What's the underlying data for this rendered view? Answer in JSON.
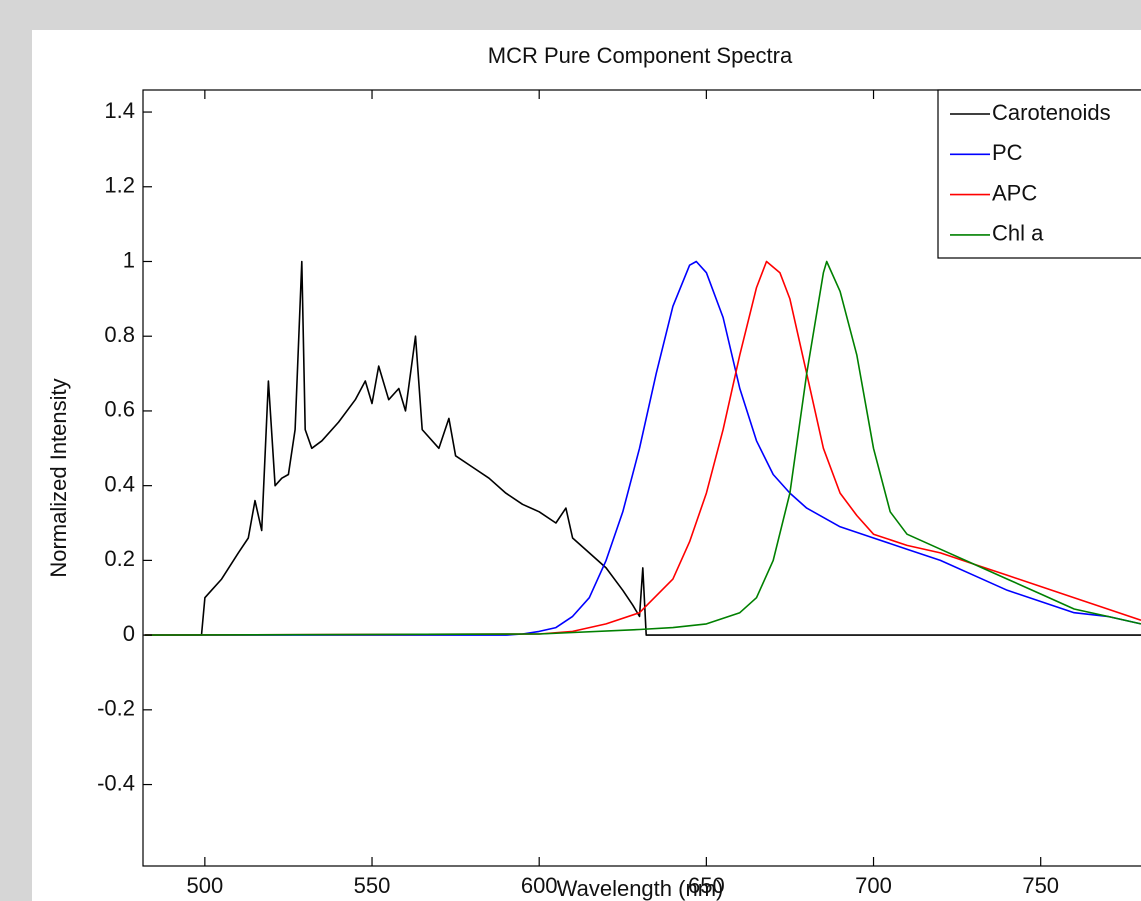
{
  "chart_data": {
    "type": "line",
    "title": "MCR Pure Component Spectra",
    "x_label": "Wavelength (nm)",
    "y_label": "Normalized Intensity",
    "xlim": [
      481.5,
      780
    ],
    "ylim": [
      -0.618,
      1.459
    ],
    "xticks": [
      500,
      550,
      600,
      650,
      700,
      750
    ],
    "yticks": [
      1.4,
      1.2,
      1,
      0.8,
      0.6,
      0.4,
      0.2,
      0,
      -0.2,
      -0.4
    ],
    "legend": "upper right",
    "series": [
      {
        "name": "Carotenoids",
        "color": "#000000",
        "x": [
          482,
          499,
          500,
          502,
          505,
          510,
          513,
          515,
          517,
          519,
          521,
          523,
          525,
          527,
          529,
          530,
          532,
          535,
          540,
          545,
          548,
          550,
          552,
          555,
          558,
          560,
          563,
          565,
          570,
          573,
          575,
          580,
          585,
          590,
          595,
          600,
          605,
          608,
          610,
          615,
          620,
          625,
          628,
          630,
          631,
          632,
          780
        ],
        "values": [
          0,
          0,
          0.1,
          0.12,
          0.15,
          0.22,
          0.26,
          0.36,
          0.28,
          0.68,
          0.4,
          0.42,
          0.43,
          0.55,
          1.0,
          0.55,
          0.5,
          0.52,
          0.57,
          0.63,
          0.68,
          0.62,
          0.72,
          0.63,
          0.66,
          0.6,
          0.8,
          0.55,
          0.5,
          0.58,
          0.48,
          0.45,
          0.42,
          0.38,
          0.35,
          0.33,
          0.3,
          0.34,
          0.26,
          0.22,
          0.18,
          0.12,
          0.08,
          0.05,
          0.18,
          0,
          0
        ]
      },
      {
        "name": "PC",
        "color": "#0000ff",
        "x": [
          482,
          590,
          595,
          600,
          605,
          610,
          615,
          620,
          625,
          630,
          635,
          640,
          645,
          647,
          650,
          655,
          660,
          665,
          670,
          675,
          680,
          690,
          700,
          710,
          720,
          730,
          740,
          750,
          760,
          770,
          780
        ],
        "values": [
          0,
          0,
          0.003,
          0.01,
          0.02,
          0.05,
          0.1,
          0.2,
          0.33,
          0.5,
          0.7,
          0.88,
          0.99,
          1.0,
          0.97,
          0.85,
          0.66,
          0.52,
          0.43,
          0.38,
          0.34,
          0.29,
          0.26,
          0.23,
          0.2,
          0.16,
          0.12,
          0.09,
          0.06,
          0.05,
          0.03
        ]
      },
      {
        "name": "APC",
        "color": "#ff0000",
        "x": [
          482,
          600,
          610,
          620,
          630,
          640,
          645,
          650,
          655,
          660,
          665,
          668,
          672,
          675,
          680,
          685,
          690,
          695,
          700,
          710,
          720,
          730,
          740,
          750,
          760,
          770,
          780
        ],
        "values": [
          0,
          0.003,
          0.01,
          0.03,
          0.06,
          0.15,
          0.25,
          0.38,
          0.55,
          0.75,
          0.93,
          1.0,
          0.97,
          0.9,
          0.7,
          0.5,
          0.38,
          0.32,
          0.27,
          0.24,
          0.22,
          0.19,
          0.16,
          0.13,
          0.1,
          0.07,
          0.04
        ]
      },
      {
        "name": "Chl a",
        "color": "#008000",
        "x": [
          482,
          600,
          630,
          640,
          650,
          660,
          665,
          670,
          675,
          680,
          685,
          686,
          690,
          695,
          700,
          705,
          710,
          720,
          730,
          740,
          750,
          760,
          770,
          780
        ],
        "values": [
          0,
          0.003,
          0.015,
          0.02,
          0.03,
          0.06,
          0.1,
          0.2,
          0.38,
          0.7,
          0.97,
          1.0,
          0.92,
          0.75,
          0.5,
          0.33,
          0.27,
          0.23,
          0.19,
          0.15,
          0.11,
          0.07,
          0.05,
          0.03
        ]
      }
    ]
  }
}
